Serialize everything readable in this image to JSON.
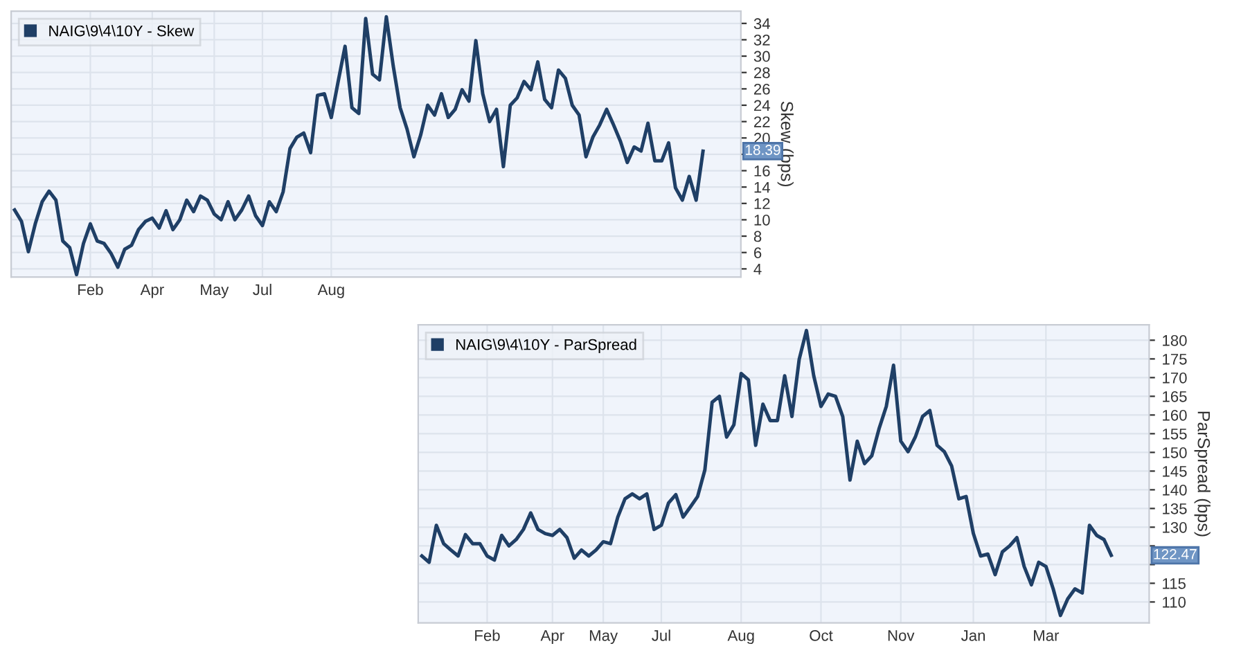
{
  "chart_data": [
    {
      "type": "line",
      "ylabel": "Skew (bps)",
      "legend": "top left",
      "grid": true,
      "categories": [
        null,
        null,
        null,
        null,
        null,
        null,
        null,
        null,
        null,
        null,
        null,
        "Feb",
        null,
        null,
        null,
        null,
        null,
        null,
        null,
        null,
        "Apr",
        null,
        null,
        null,
        null,
        null,
        null,
        null,
        null,
        "May",
        null,
        null,
        null,
        null,
        null,
        null,
        "Jul",
        null,
        null,
        null,
        null,
        null,
        null,
        null,
        null,
        null,
        "Aug",
        null,
        null,
        null,
        null,
        null,
        null,
        null,
        null,
        null,
        null,
        null,
        null,
        null,
        null,
        null,
        null,
        null,
        null,
        null,
        null,
        null,
        null,
        null,
        null,
        null,
        null,
        null,
        null,
        null,
        null,
        null,
        null,
        null,
        null,
        null,
        null,
        null,
        null,
        null,
        null,
        null,
        null,
        null,
        null,
        null,
        null,
        null,
        null,
        null,
        null,
        null,
        null,
        null,
        null
      ],
      "series": [
        {
          "name": "NAIG\\9\\4\\10Y - Skew",
          "color": "#1f3f66",
          "values": [
            11.2,
            9.8,
            6.1,
            9.5,
            12.2,
            13.5,
            12.4,
            7.4,
            6.6,
            3.3,
            7.1,
            9.5,
            7.4,
            7.1,
            5.9,
            4.2,
            6.4,
            6.9,
            8.8,
            9.8,
            10.2,
            9.0,
            11.1,
            8.8,
            10.0,
            12.4,
            11.0,
            12.9,
            12.4,
            10.7,
            10.0,
            12.2,
            10.0,
            11.2,
            12.9,
            10.5,
            9.3,
            12.2,
            11.0,
            13.4,
            18.7,
            20.1,
            20.6,
            18.2,
            25.2,
            25.4,
            22.5,
            26.9,
            31.2,
            23.7,
            23.0,
            34.6,
            27.8,
            27.1,
            34.8,
            28.8,
            23.7,
            21.1,
            17.7,
            20.4,
            24.0,
            22.8,
            25.4,
            22.5,
            23.5,
            25.9,
            24.5,
            31.9,
            25.4,
            22.0,
            23.5,
            16.5,
            24.0,
            24.9,
            26.9,
            25.9,
            29.3,
            24.7,
            23.7,
            28.3,
            27.3,
            24.0,
            22.8,
            17.7,
            20.1,
            21.6,
            23.5,
            21.6,
            19.6,
            17.0,
            18.9,
            18.4,
            21.8,
            17.2,
            17.2,
            19.4,
            13.9,
            12.4,
            15.3,
            12.4,
            18.39
          ]
        }
      ],
      "ylim": [
        3,
        35.5
      ],
      "yticks": [
        4,
        6,
        8,
        10,
        12,
        14,
        16,
        {
          "value": 18,
          "label": null
        },
        20,
        22,
        24,
        26,
        28,
        30,
        32,
        34
      ],
      "annotations": [
        "18.39"
      ]
    },
    {
      "type": "line",
      "ylabel": "ParSpread (bps)",
      "legend": "top left",
      "grid": true,
      "categories": [
        null,
        null,
        null,
        null,
        null,
        null,
        null,
        null,
        null,
        "Feb",
        null,
        null,
        null,
        null,
        null,
        null,
        null,
        null,
        "Apr",
        null,
        null,
        null,
        null,
        null,
        null,
        "May",
        null,
        null,
        null,
        null,
        null,
        null,
        null,
        "Jul",
        null,
        null,
        null,
        null,
        null,
        null,
        null,
        null,
        null,
        null,
        "Aug",
        null,
        null,
        null,
        null,
        null,
        null,
        null,
        null,
        null,
        null,
        "Oct",
        null,
        null,
        null,
        null,
        null,
        null,
        null,
        null,
        null,
        null,
        "Nov",
        null,
        null,
        null,
        null,
        null,
        null,
        null,
        null,
        null,
        "Jan",
        null,
        null,
        null,
        null,
        null,
        null,
        null,
        null,
        null,
        "Mar",
        null,
        null,
        null,
        null,
        null,
        null,
        null,
        null,
        null
      ],
      "series": [
        {
          "name": "NAIG\\9\\4\\10Y - ParSpread",
          "color": "#1f3f66",
          "values": [
            122.3,
            120.6,
            130.5,
            125.6,
            123.9,
            122.3,
            128.0,
            125.6,
            125.6,
            122.3,
            121.2,
            127.8,
            125.0,
            126.7,
            129.4,
            133.8,
            129.4,
            128.3,
            127.8,
            129.4,
            127.2,
            121.7,
            123.9,
            122.3,
            123.9,
            126.1,
            125.6,
            132.7,
            137.6,
            138.9,
            137.6,
            138.9,
            129.4,
            130.5,
            136.5,
            138.7,
            132.7,
            135.4,
            138.2,
            145.3,
            163.4,
            165.0,
            154.1,
            157.4,
            171.1,
            169.4,
            151.9,
            162.9,
            158.5,
            158.5,
            170.5,
            159.6,
            174.9,
            182.6,
            170.5,
            162.3,
            165.6,
            165.0,
            159.6,
            142.6,
            153.0,
            147.0,
            149.1,
            156.3,
            162.3,
            173.3,
            153.0,
            150.2,
            154.1,
            159.6,
            161.2,
            151.9,
            150.2,
            146.4,
            137.6,
            138.2,
            128.3,
            122.3,
            122.8,
            117.3,
            123.4,
            125.0,
            127.2,
            119.5,
            114.6,
            120.6,
            119.5,
            113.5,
            106.4,
            110.8,
            113.5,
            112.4,
            130.5,
            127.8,
            126.7,
            122.47
          ]
        }
      ],
      "ylim": [
        104.4,
        184.1
      ],
      "yticks": [
        110,
        115,
        {
          "value": 120,
          "label": null
        },
        {
          "value": 125,
          "label": null
        },
        130,
        135,
        140,
        145,
        150,
        155,
        160,
        165,
        170,
        175,
        180
      ],
      "annotations": [
        "122.47"
      ]
    }
  ]
}
